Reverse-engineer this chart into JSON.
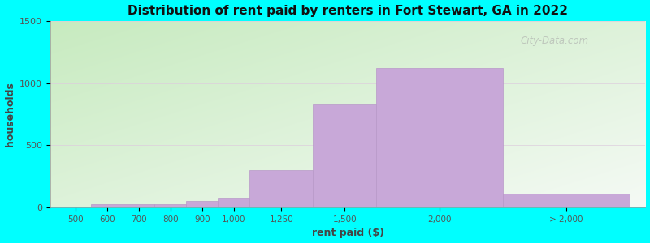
{
  "title": "Distribution of rent paid by renters in Fort Stewart, GA in 2022",
  "xlabel": "rent paid ($)",
  "ylabel": "households",
  "background_color": "#00FFFF",
  "bar_color": "#c8a8d8",
  "bar_edge_color": "#b898c8",
  "ylim": [
    0,
    1500
  ],
  "yticks": [
    0,
    500,
    1000,
    1500
  ],
  "values": [
    10,
    30,
    25,
    25,
    50,
    75,
    300,
    830,
    1120,
    110
  ],
  "bar_lefts": [
    0,
    1,
    2,
    3,
    4,
    5,
    6,
    8,
    10,
    14
  ],
  "bar_widths": [
    1,
    1,
    1,
    1,
    1,
    1,
    2,
    2,
    4,
    4
  ],
  "tick_positions": [
    0.5,
    1.5,
    2.5,
    3.5,
    4.5,
    5.5,
    7,
    9,
    12,
    16
  ],
  "tick_labels": [
    "500",
    "600",
    "700",
    "800",
    "900",
    "1,000",
    "1,250",
    "1,500",
    "2,000",
    "> 2,000"
  ],
  "xlim": [
    -0.3,
    18.5
  ],
  "gradient_colors": [
    "#c8e8c0",
    "#f0f8ee"
  ],
  "watermark": "City-Data.com",
  "grid_color": "#ddccdd",
  "grid_alpha": 0.8
}
